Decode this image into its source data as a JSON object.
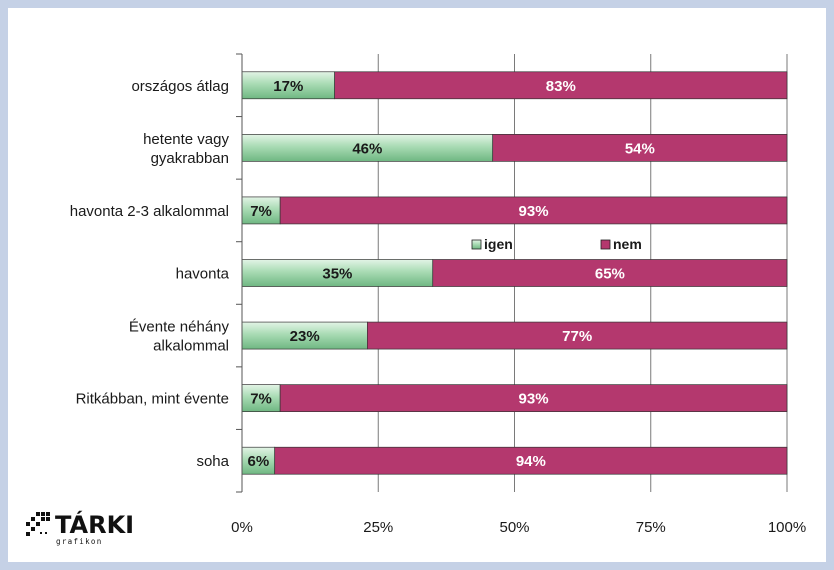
{
  "chart_data": {
    "type": "bar",
    "stacked": true,
    "orientation": "horizontal",
    "categories": [
      [
        "országos átlag"
      ],
      [
        "hetente vagy",
        "gyakrabban"
      ],
      [
        "havonta 2-3 alkalommal"
      ],
      [
        "havonta"
      ],
      [
        "Évente néhány",
        "alkalommal"
      ],
      [
        "Ritkábban, mint évente"
      ],
      [
        "soha"
      ]
    ],
    "series": [
      {
        "name": "igen",
        "values": [
          17,
          46,
          7,
          35,
          23,
          7,
          6
        ],
        "labels": [
          "17%",
          "46%",
          "7%",
          "35%",
          "23%",
          "7%",
          "6%"
        ],
        "color": "#8fcf9f"
      },
      {
        "name": "nem",
        "values": [
          83,
          54,
          93,
          65,
          77,
          93,
          94
        ],
        "labels": [
          "83%",
          "54%",
          "93%",
          "65%",
          "77%",
          "93%",
          "94%"
        ],
        "color": "#b4386e"
      }
    ],
    "x_ticks": [
      "0%",
      "25%",
      "50%",
      "75%",
      "100%"
    ],
    "xlim": [
      0,
      100
    ],
    "grid": true,
    "legend_position": "middle-right"
  },
  "logo": {
    "text": "TÁRKI",
    "subtext": "grafikon"
  },
  "colors": {
    "background_border": "#c5d1e6",
    "igen": "#8fcf9f",
    "nem": "#b4386e"
  }
}
